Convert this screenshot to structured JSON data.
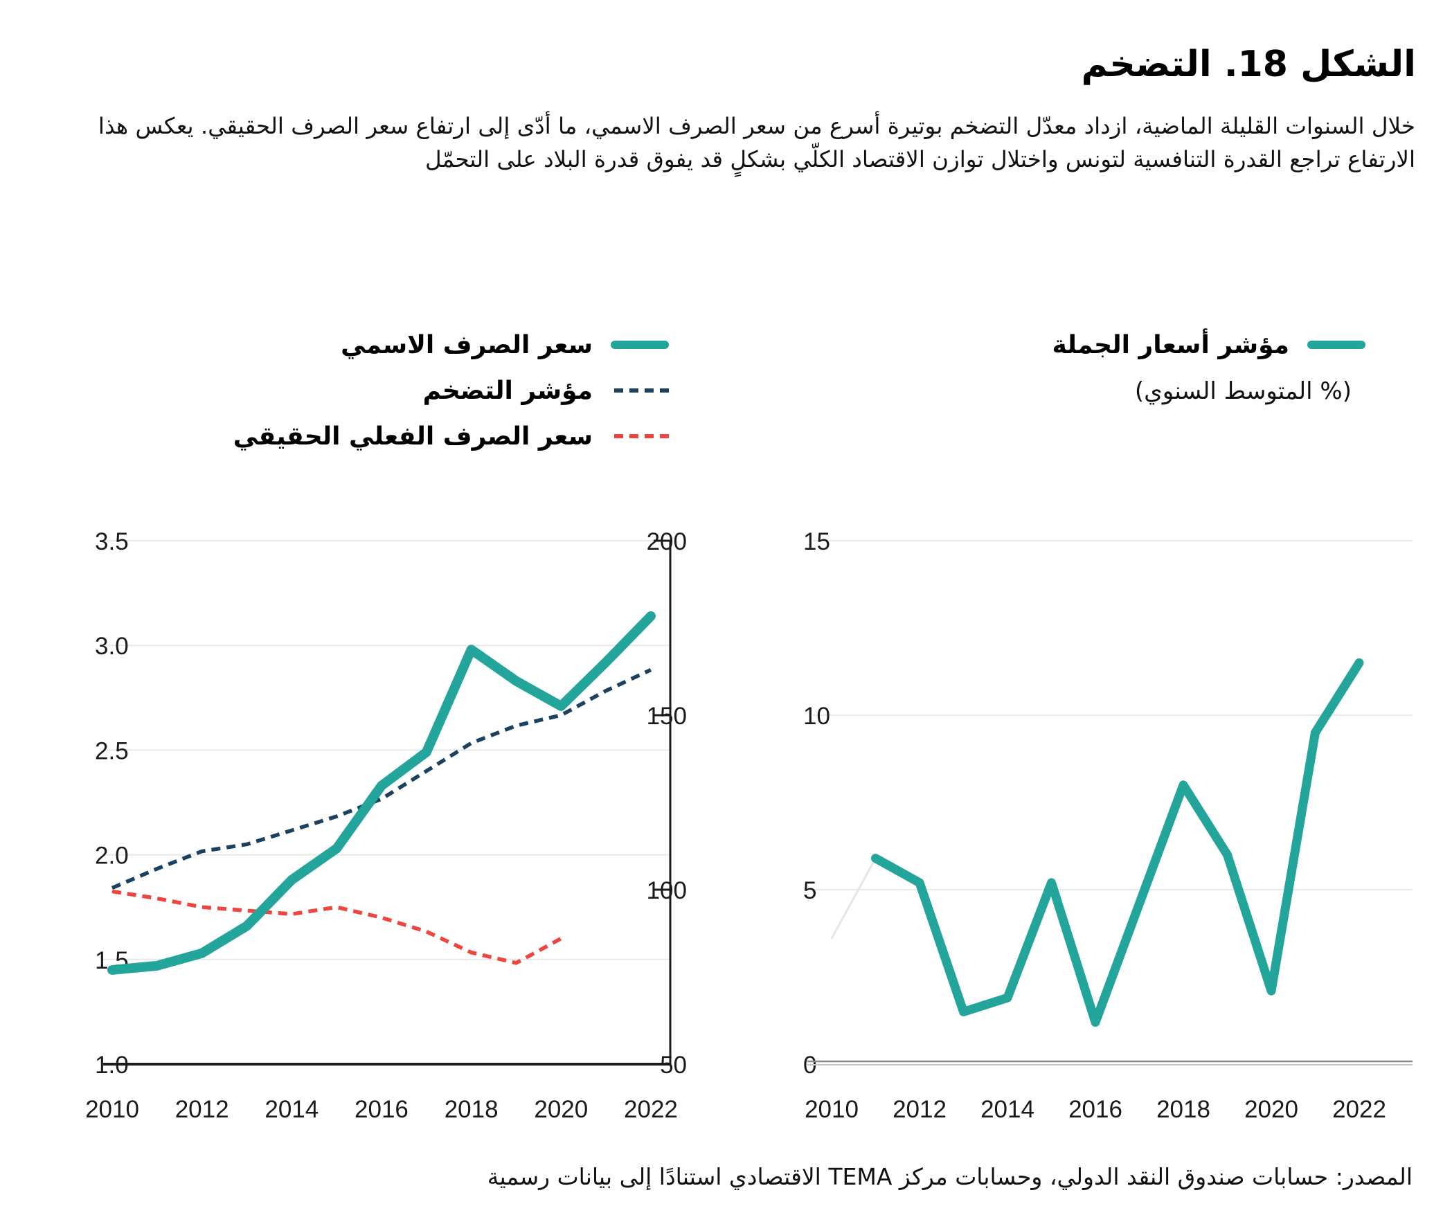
{
  "title": "الشكل 18. التضخم",
  "description": "خلال السنوات القليلة الماضية، ازداد معدّل التضخم بوتيرة أسرع من سعر الصرف الاسمي، ما أدّى إلى ارتفاع سعر الصرف الحقيقي. يعكس هذا الارتفاع تراجع القدرة التنافسية لتونس واختلال توازن الاقتصاد الكلّي بشكلٍ قد يفوق قدرة البلاد على التحمّل",
  "source": "المصدر: حسابات صندوق النقد الدولي، وحسابات مركز TEMA الاقتصادي استنادًا إلى بيانات رسمية",
  "colors": {
    "teal": "#23a59c",
    "navy": "#1b4160",
    "red": "#ee463e",
    "grid": "#e8e8e8",
    "axis": "#1c1c1c",
    "zero_axis_dark": "#8a8a8a",
    "zero_axis_light": "#c8c8c8",
    "faint_lead": "#e6e6e6",
    "text": "#000000"
  },
  "legend_left": {
    "items": [
      {
        "label": "سعر الصرف الاسمي",
        "style": "solid",
        "color": "#23a59c"
      },
      {
        "label": "مؤشر التضخم",
        "style": "dashed",
        "color": "#1b4160"
      },
      {
        "label": "سعر الصرف الفعلي الحقيقي",
        "style": "dashed",
        "color": "#ee463e"
      }
    ]
  },
  "legend_right": {
    "label": "مؤشر أسعار الجملة",
    "sublabel": "(% المتوسط السنوي)",
    "style": "solid",
    "color": "#23a59c"
  },
  "chart_data": [
    {
      "type": "line",
      "name": "exchange-rate-and-inflation",
      "x": [
        2010,
        2011,
        2012,
        2013,
        2014,
        2015,
        2016,
        2017,
        2018,
        2019,
        2020,
        2021,
        2022
      ],
      "x_ticks": [
        "2010",
        "2012",
        "2014",
        "2016",
        "2018",
        "2020",
        "2022"
      ],
      "left_axis": {
        "min": 1.0,
        "max": 3.5,
        "ticks": [
          "3.5",
          "3.0",
          "2.5",
          "2.0",
          "1.5",
          "1.0"
        ]
      },
      "right_axis": {
        "min": 50,
        "max": 200,
        "ticks": [
          "200",
          "150",
          "100",
          "50"
        ]
      },
      "grid": "horizontal",
      "legend_position": "top",
      "series": [
        {
          "id": "inflation-index",
          "name": "مؤشر التضخم",
          "axis": "right",
          "style": "dashed",
          "color": "#1b4160",
          "values": [
            100.5,
            106,
            111,
            113,
            117,
            121,
            126,
            134,
            142,
            147,
            150,
            157,
            163
          ]
        },
        {
          "id": "real-effective-exchange-rate",
          "name": "سعر الصرف الفعلي الحقيقي",
          "axis": "right",
          "style": "dashed",
          "color": "#ee463e",
          "values": [
            99.5,
            97.5,
            95,
            94,
            93,
            95,
            92,
            88,
            82,
            79,
            86,
            null,
            null
          ]
        },
        {
          "id": "nominal-exchange-rate",
          "name": "سعر الصرف الاسمي",
          "axis": "left",
          "style": "solid",
          "color": "#23a59c",
          "values": [
            1.45,
            1.47,
            1.53,
            1.66,
            1.88,
            2.03,
            2.33,
            2.49,
            2.98,
            2.83,
            2.71,
            2.92,
            3.14
          ]
        }
      ]
    },
    {
      "type": "line",
      "name": "wholesale-price-index",
      "title": "مؤشر أسعار الجملة",
      "subtitle": "(% المتوسط السنوي)",
      "x": [
        2010,
        2011,
        2012,
        2013,
        2014,
        2015,
        2016,
        2017,
        2018,
        2019,
        2020,
        2021,
        2022
      ],
      "x_ticks": [
        "2010",
        "2012",
        "2014",
        "2016",
        "2018",
        "2020",
        "2022"
      ],
      "y_axis": {
        "min": 0,
        "max": 15,
        "ticks": [
          "15",
          "10",
          "5",
          "0"
        ]
      },
      "grid": "horizontal",
      "series": [
        {
          "id": "wholesale-price-index",
          "name": "مؤشر أسعار الجملة",
          "style": "solid",
          "color": "#23a59c",
          "values": [
            null,
            5.9,
            5.2,
            1.5,
            1.9,
            5.2,
            1.2,
            4.6,
            8.0,
            6.0,
            2.1,
            9.5,
            11.5
          ]
        }
      ],
      "faint_lead_in": {
        "x": [
          2010,
          2011
        ],
        "values": [
          3.6,
          5.9
        ]
      }
    }
  ]
}
